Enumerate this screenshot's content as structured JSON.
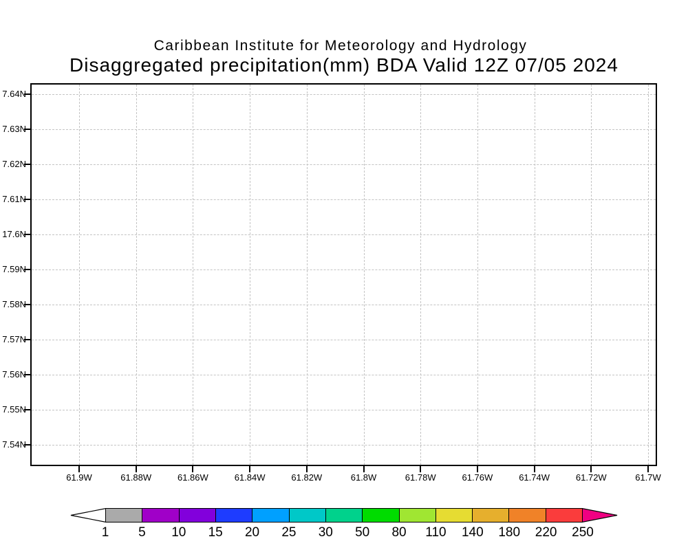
{
  "header": {
    "title": "Caribbean Institute for Meteorology and Hydrology",
    "subtitle": "Disaggregated precipitation(mm) BDA Valid 12Z 07/05 2024"
  },
  "axes": {
    "y_labels": [
      "7.64N",
      "7.63N",
      "7.62N",
      "7.61N",
      "17.6N",
      "7.59N",
      "7.58N",
      "7.57N",
      "7.56N",
      "7.55N",
      "7.54N"
    ],
    "x_labels": [
      "61.9W",
      "61.88W",
      "61.86W",
      "61.84W",
      "61.82W",
      "61.8W",
      "61.78W",
      "61.76W",
      "61.74W",
      "61.72W",
      "61.7W"
    ]
  },
  "colorbar": {
    "labels": [
      "1",
      "5",
      "10",
      "15",
      "20",
      "25",
      "30",
      "50",
      "80",
      "110",
      "140",
      "180",
      "220",
      "250"
    ],
    "segment_colors": [
      "#aaaaaa",
      "#a000c8",
      "#8200dc",
      "#1e3cff",
      "#00a0ff",
      "#00c8c8",
      "#00d28c",
      "#00dc00",
      "#a0e632",
      "#e6dc32",
      "#e6af2d",
      "#f08228",
      "#fa3c3c"
    ],
    "under_arrow_color": "#ffffff",
    "over_arrow_color": "#f00082"
  },
  "chart_data": {
    "type": "heatmap",
    "title": "Caribbean Institute for Meteorology and Hydrology",
    "subtitle": "Disaggregated precipitation(mm) BDA Valid 12Z 07/05 2024",
    "variable": "Disaggregated precipitation (mm)",
    "region_code": "BDA",
    "valid_time": "12Z 07/05 2024",
    "x_tick_labels": [
      "61.9W",
      "61.88W",
      "61.86W",
      "61.84W",
      "61.82W",
      "61.8W",
      "61.78W",
      "61.76W",
      "61.74W",
      "61.72W",
      "61.7W"
    ],
    "y_tick_labels": [
      "7.64N",
      "7.63N",
      "7.62N",
      "7.61N",
      "17.6N",
      "7.59N",
      "7.58N",
      "7.57N",
      "7.56N",
      "7.55N",
      "7.54N"
    ],
    "grid": true,
    "values": [],
    "shaded_field_present": false,
    "colorbar_levels": [
      1,
      5,
      10,
      15,
      20,
      25,
      30,
      50,
      80,
      110,
      140,
      180,
      220,
      250
    ],
    "colorbar_colors": [
      "#aaaaaa",
      "#a000c8",
      "#8200dc",
      "#1e3cff",
      "#00a0ff",
      "#00c8c8",
      "#00d28c",
      "#00dc00",
      "#a0e632",
      "#e6dc32",
      "#e6af2d",
      "#f08228",
      "#fa3c3c"
    ],
    "colorbar_over_color": "#f00082",
    "colorbar_under_color": "#ffffff"
  }
}
